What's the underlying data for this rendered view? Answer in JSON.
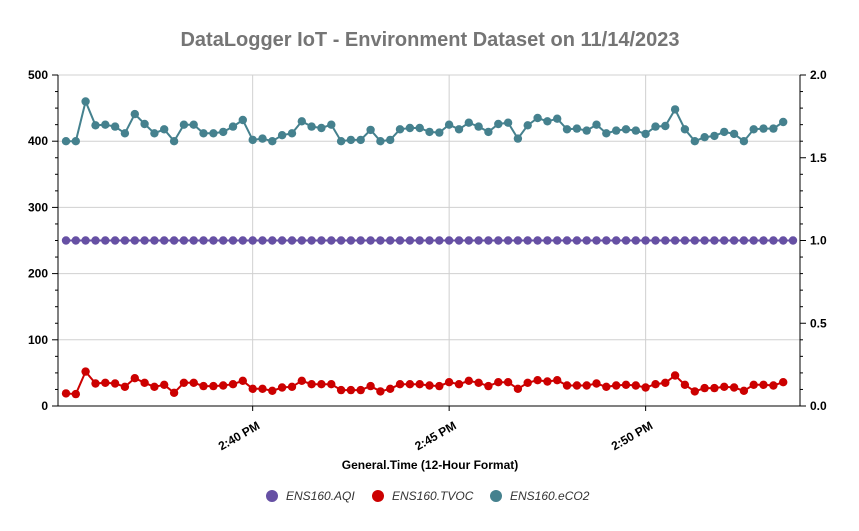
{
  "chart_data": {
    "type": "line",
    "title": "DataLogger IoT - Environment Dataset on 11/14/2023",
    "xlabel": "General.Time (12-Hour Format)",
    "x_tick_labels": [
      "2:40 PM",
      "2:45 PM",
      "2:50 PM"
    ],
    "x_tick_index": [
      19,
      39,
      59
    ],
    "y_left": {
      "ylim": [
        0,
        500
      ],
      "ticks": [
        "0",
        "100",
        "200",
        "300",
        "400",
        "500"
      ]
    },
    "y_right": {
      "ylim": [
        0,
        2
      ],
      "ticks": [
        "0.0",
        "0.5",
        "1.0",
        "1.5",
        "2.0"
      ]
    },
    "grid": true,
    "legend_position": "bottom",
    "series": [
      {
        "name": "ENS160.AQI",
        "color": "#6650a4",
        "axis": "right",
        "values": [
          1,
          1,
          1,
          1,
          1,
          1,
          1,
          1,
          1,
          1,
          1,
          1,
          1,
          1,
          1,
          1,
          1,
          1,
          1,
          1,
          1,
          1,
          1,
          1,
          1,
          1,
          1,
          1,
          1,
          1,
          1,
          1,
          1,
          1,
          1,
          1,
          1,
          1,
          1,
          1,
          1,
          1,
          1,
          1,
          1,
          1,
          1,
          1,
          1,
          1,
          1,
          1,
          1,
          1,
          1,
          1,
          1,
          1,
          1,
          1,
          1,
          1,
          1,
          1,
          1,
          1,
          1,
          1,
          1,
          1,
          1,
          1,
          1,
          1,
          1
        ]
      },
      {
        "name": "ENS160.TVOC",
        "color": "#cc0000",
        "axis": "left",
        "values": [
          19,
          18,
          52,
          34,
          35,
          34,
          29,
          42,
          35,
          29,
          32,
          20,
          35,
          35,
          30,
          30,
          31,
          33,
          38,
          26,
          26,
          23,
          28,
          29,
          38,
          33,
          33,
          33,
          24,
          24,
          24,
          30,
          22,
          26,
          33,
          33,
          33,
          31,
          30,
          36,
          33,
          38,
          35,
          30,
          36,
          36,
          26,
          35,
          39,
          37,
          39,
          31,
          31,
          31,
          34,
          29,
          31,
          32,
          31,
          28,
          33,
          35,
          46,
          32,
          22,
          27,
          27,
          29,
          28,
          23,
          32,
          32,
          31,
          36
        ]
      },
      {
        "name": "ENS160.eCO2",
        "color": "#45818e",
        "axis": "left",
        "values": [
          400,
          400,
          460,
          424,
          425,
          422,
          412,
          441,
          426,
          412,
          418,
          400,
          425,
          425,
          412,
          412,
          414,
          422,
          432,
          402,
          404,
          400,
          409,
          412,
          430,
          422,
          420,
          425,
          400,
          402,
          402,
          417,
          400,
          402,
          418,
          420,
          420,
          414,
          413,
          425,
          418,
          428,
          422,
          414,
          426,
          428,
          404,
          424,
          435,
          430,
          434,
          418,
          419,
          416,
          425,
          412,
          416,
          418,
          416,
          411,
          422,
          423,
          448,
          418,
          400,
          406,
          408,
          414,
          411,
          400,
          418,
          419,
          419,
          429
        ]
      }
    ]
  }
}
